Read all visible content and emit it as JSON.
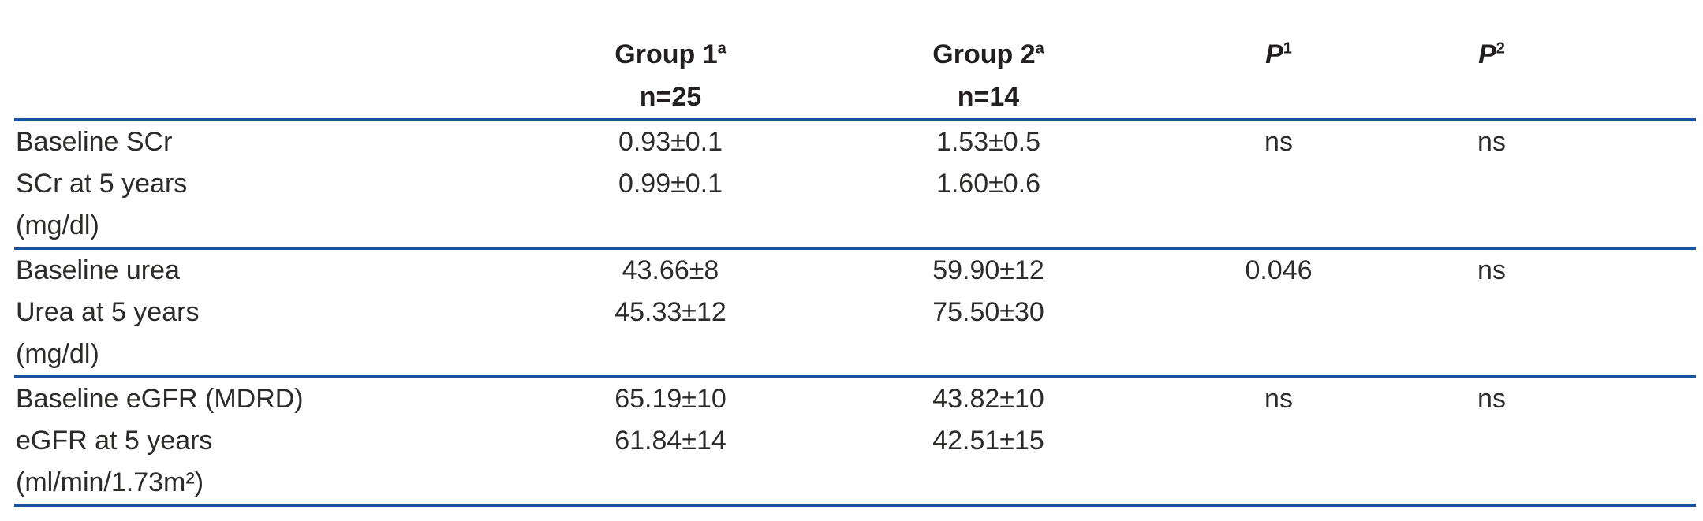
{
  "page": {
    "rule_color": "#1a52a2",
    "text_color": "#2d2b2a",
    "header_color": "#231f20",
    "background": "#ffffff"
  },
  "table": {
    "header": {
      "col0": "",
      "group1": {
        "label": "Group 1",
        "sup": "a",
        "n": "n=25"
      },
      "group2": {
        "label": "Group 2",
        "sup": "a",
        "n": "n=14"
      },
      "p1": {
        "label": "P",
        "sup": "1"
      },
      "p2": {
        "label": "P",
        "sup": "2"
      }
    },
    "sections": [
      {
        "rows": [
          {
            "label": "Baseline SCr",
            "g1": "0.93±0.1",
            "g2": "1.53±0.5",
            "p1": "ns",
            "p2": "ns"
          },
          {
            "label": "SCr at 5 years",
            "g1": "0.99±0.1",
            "g2": "1.60±0.6",
            "p1": "",
            "p2": ""
          },
          {
            "label": "(mg/dl)",
            "g1": "",
            "g2": "",
            "p1": "",
            "p2": ""
          }
        ]
      },
      {
        "rows": [
          {
            "label": "Baseline urea",
            "g1": "43.66±8",
            "g2": "59.90±12",
            "p1": "0.046",
            "p2": "ns"
          },
          {
            "label": "Urea at 5 years",
            "g1": "45.33±12",
            "g2": "75.50±30",
            "p1": "",
            "p2": ""
          },
          {
            "label": "(mg/dl)",
            "g1": "",
            "g2": "",
            "p1": "",
            "p2": ""
          }
        ]
      },
      {
        "rows": [
          {
            "label": "Baseline eGFR (MDRD)",
            "g1": "65.19±10",
            "g2": "43.82±10",
            "p1": "ns",
            "p2": "ns"
          },
          {
            "label": "eGFR at 5 years",
            "g1": "61.84±14",
            "g2": "42.51±15",
            "p1": "",
            "p2": ""
          },
          {
            "label": "(ml/min/1.73m²)",
            "g1": "",
            "g2": "",
            "p1": "",
            "p2": ""
          }
        ]
      }
    ]
  }
}
